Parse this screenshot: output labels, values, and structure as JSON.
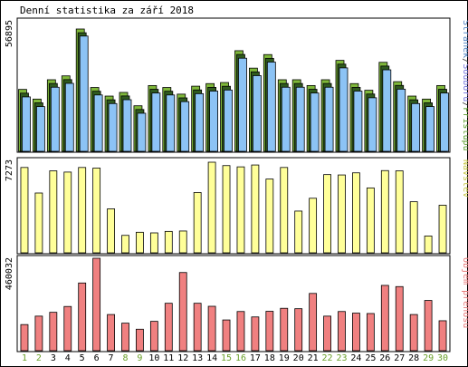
{
  "chart_data": {
    "type": "bar",
    "title": "Denní statistika za září 2018",
    "categories": [
      "1",
      "2",
      "3",
      "4",
      "5",
      "6",
      "7",
      "8",
      "9",
      "10",
      "11",
      "12",
      "13",
      "14",
      "15",
      "16",
      "17",
      "18",
      "19",
      "20",
      "21",
      "22",
      "23",
      "24",
      "25",
      "26",
      "27",
      "28",
      "29",
      "30"
    ],
    "weekend_days": [
      "1",
      "2",
      "8",
      "9",
      "15",
      "16",
      "22",
      "23",
      "29",
      "30"
    ],
    "panels": [
      {
        "id": "top",
        "ymax_label": "56895",
        "ymax": 56895,
        "legend": [
          {
            "text": "Stránek",
            "color": "#4f82c4"
          },
          {
            "text": "/",
            "color": "#333333"
          },
          {
            "text": "Souborů",
            "color": "#7777dd"
          },
          {
            "text": "/",
            "color": "#333333"
          },
          {
            "text": "Přístupů",
            "color": "#5f9f2f"
          }
        ],
        "series": [
          {
            "name": "Přístupů",
            "color": "#7fb83a",
            "values": [
              28800,
              24300,
              33300,
              35100,
              56895,
              29700,
              25700,
              27400,
              21200,
              30600,
              29700,
              26600,
              30300,
              31500,
              32000,
              46800,
              38700,
              45000,
              33300,
              33300,
              30600,
              33300,
              42300,
              31500,
              28400,
              41400,
              32400,
              25700,
              24300,
              30600
            ]
          },
          {
            "name": "Souborů",
            "color": "#2f5a1f",
            "values": [
              27900,
              23400,
              32400,
              34200,
              56000,
              28800,
              24800,
              26600,
              20300,
              29700,
              28800,
              25700,
              29400,
              30600,
              31100,
              45900,
              37800,
              44100,
              32400,
              32400,
              29700,
              32400,
              41400,
              30600,
              27500,
              40500,
              31500,
              24800,
              23400,
              29700
            ]
          },
          {
            "name": "Stránek",
            "color": "#8cc3f5",
            "values": [
              27000,
              22500,
              31500,
              33300,
              55300,
              27900,
              23900,
              25700,
              19400,
              28800,
              27900,
              24800,
              28500,
              29700,
              30200,
              45000,
              36900,
              43200,
              31500,
              31500,
              28800,
              31500,
              40500,
              29700,
              26600,
              39600,
              30600,
              23900,
              22500,
              28800
            ]
          }
        ]
      },
      {
        "id": "middle",
        "ymax_label": "7273",
        "ymax": 7273,
        "legend": [
          {
            "text": "Návštěv",
            "color": "#c8c84a"
          }
        ],
        "series": [
          {
            "name": "Návštěv",
            "color": "#ffff99",
            "values": [
              6850,
              4800,
              6580,
              6480,
              6850,
              6800,
              3530,
              1400,
              1650,
              1600,
              1720,
              1750,
              4840,
              7273,
              7000,
              6900,
              7050,
              5920,
              6850,
              3350,
              4380,
              6280,
              6250,
              6420,
              5210,
              6600,
              6580,
              4100,
              1350,
              3820
            ]
          }
        ]
      },
      {
        "id": "bottom",
        "ymax_label": "460032",
        "ymax": 460032,
        "legend": [
          {
            "text": "Objem přenosu",
            "color": "#e87a7a"
          }
        ],
        "series": [
          {
            "name": "Objem přenosu",
            "color": "#f08080",
            "values": [
              130000,
              172000,
              191000,
              220000,
              337000,
              460032,
              180000,
              137000,
              107000,
              146000,
              236000,
              389000,
              236000,
              221000,
              153000,
              195000,
              168000,
              196000,
              211000,
              209000,
              285000,
              172000,
              195000,
              187000,
              185000,
              325000,
              319000,
              180000,
              250000,
              149000
            ]
          }
        ]
      }
    ]
  }
}
